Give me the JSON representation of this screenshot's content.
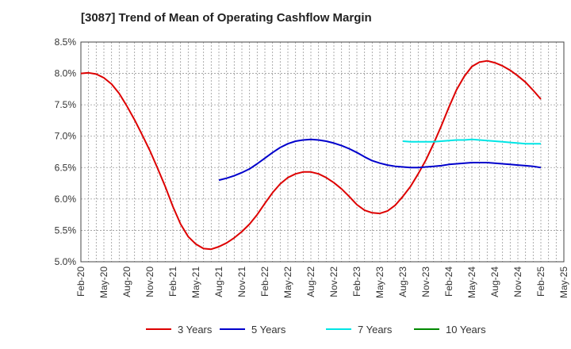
{
  "chart_data": {
    "type": "line",
    "title": "[3087]  Trend of Mean of Operating Cashflow Margin",
    "xlabel": "",
    "ylabel": "",
    "x_ticks": [
      "Feb-20",
      "May-20",
      "Aug-20",
      "Nov-20",
      "Feb-21",
      "May-21",
      "Aug-21",
      "Nov-21",
      "Feb-22",
      "May-22",
      "Aug-22",
      "Nov-22",
      "Feb-23",
      "May-23",
      "Aug-23",
      "Nov-23",
      "Feb-24",
      "May-24",
      "Aug-24",
      "Nov-24",
      "Feb-25",
      "May-25"
    ],
    "y_ticks": [
      "5.0%",
      "5.5%",
      "6.0%",
      "6.5%",
      "7.0%",
      "7.5%",
      "8.0%",
      "8.5%"
    ],
    "ylim": [
      5.0,
      8.5
    ],
    "grid": true,
    "legend_position": "bottom",
    "series": [
      {
        "name": "3 Years",
        "color": "#dd0000",
        "x": [
          "2020-02",
          "2020-03",
          "2020-04",
          "2020-05",
          "2020-06",
          "2020-07",
          "2020-08",
          "2020-09",
          "2020-10",
          "2020-11",
          "2020-12",
          "2021-01",
          "2021-02",
          "2021-03",
          "2021-04",
          "2021-05",
          "2021-06",
          "2021-07",
          "2021-08",
          "2021-09",
          "2021-10",
          "2021-11",
          "2021-12",
          "2022-01",
          "2022-02",
          "2022-03",
          "2022-04",
          "2022-05",
          "2022-06",
          "2022-07",
          "2022-08",
          "2022-09",
          "2022-10",
          "2022-11",
          "2022-12",
          "2023-01",
          "2023-02",
          "2023-03",
          "2023-04",
          "2023-05",
          "2023-06",
          "2023-07",
          "2023-08",
          "2023-09",
          "2023-10",
          "2023-11",
          "2023-12",
          "2024-01",
          "2024-02",
          "2024-03",
          "2024-04",
          "2024-05",
          "2024-06",
          "2024-07",
          "2024-08",
          "2024-09",
          "2024-10",
          "2024-11",
          "2024-12",
          "2025-01",
          "2025-02"
        ],
        "values": [
          8.0,
          8.01,
          7.99,
          7.93,
          7.83,
          7.68,
          7.48,
          7.26,
          7.02,
          6.77,
          6.49,
          6.2,
          5.88,
          5.6,
          5.4,
          5.28,
          5.21,
          5.2,
          5.24,
          5.3,
          5.38,
          5.48,
          5.6,
          5.75,
          5.93,
          6.1,
          6.24,
          6.34,
          6.4,
          6.43,
          6.43,
          6.4,
          6.34,
          6.26,
          6.16,
          6.04,
          5.91,
          5.82,
          5.78,
          5.77,
          5.81,
          5.9,
          6.04,
          6.2,
          6.4,
          6.62,
          6.88,
          7.16,
          7.46,
          7.74,
          7.95,
          8.11,
          8.18,
          8.2,
          8.17,
          8.12,
          8.05,
          7.96,
          7.86,
          7.73,
          7.59
        ]
      },
      {
        "name": "5 Years",
        "color": "#0000cc",
        "x": [
          "2021-08",
          "2021-09",
          "2021-10",
          "2021-11",
          "2021-12",
          "2022-01",
          "2022-02",
          "2022-03",
          "2022-04",
          "2022-05",
          "2022-06",
          "2022-07",
          "2022-08",
          "2022-09",
          "2022-10",
          "2022-11",
          "2022-12",
          "2023-01",
          "2023-02",
          "2023-03",
          "2023-04",
          "2023-05",
          "2023-06",
          "2023-07",
          "2023-08",
          "2023-09",
          "2023-10",
          "2023-11",
          "2023-12",
          "2024-01",
          "2024-02",
          "2024-03",
          "2024-04",
          "2024-05",
          "2024-06",
          "2024-07",
          "2024-08",
          "2024-09",
          "2024-10",
          "2024-11",
          "2024-12",
          "2025-01",
          "2025-02"
        ],
        "values": [
          6.3,
          6.33,
          6.37,
          6.42,
          6.48,
          6.56,
          6.65,
          6.74,
          6.82,
          6.88,
          6.92,
          6.94,
          6.95,
          6.94,
          6.92,
          6.89,
          6.85,
          6.8,
          6.74,
          6.67,
          6.61,
          6.57,
          6.54,
          6.52,
          6.51,
          6.5,
          6.5,
          6.51,
          6.52,
          6.53,
          6.55,
          6.56,
          6.57,
          6.58,
          6.58,
          6.58,
          6.57,
          6.56,
          6.55,
          6.54,
          6.53,
          6.52,
          6.5
        ]
      },
      {
        "name": "7 Years",
        "color": "#00e5e5",
        "x": [
          "2023-08",
          "2023-09",
          "2023-10",
          "2023-11",
          "2023-12",
          "2024-01",
          "2024-02",
          "2024-03",
          "2024-04",
          "2024-05",
          "2024-06",
          "2024-07",
          "2024-08",
          "2024-09",
          "2024-10",
          "2024-11",
          "2024-12",
          "2025-01",
          "2025-02"
        ],
        "values": [
          6.92,
          6.91,
          6.91,
          6.91,
          6.91,
          6.92,
          6.93,
          6.94,
          6.94,
          6.95,
          6.94,
          6.93,
          6.92,
          6.91,
          6.9,
          6.89,
          6.88,
          6.88,
          6.88
        ]
      },
      {
        "name": "10 Years",
        "color": "#008800",
        "x": [],
        "values": []
      }
    ]
  }
}
